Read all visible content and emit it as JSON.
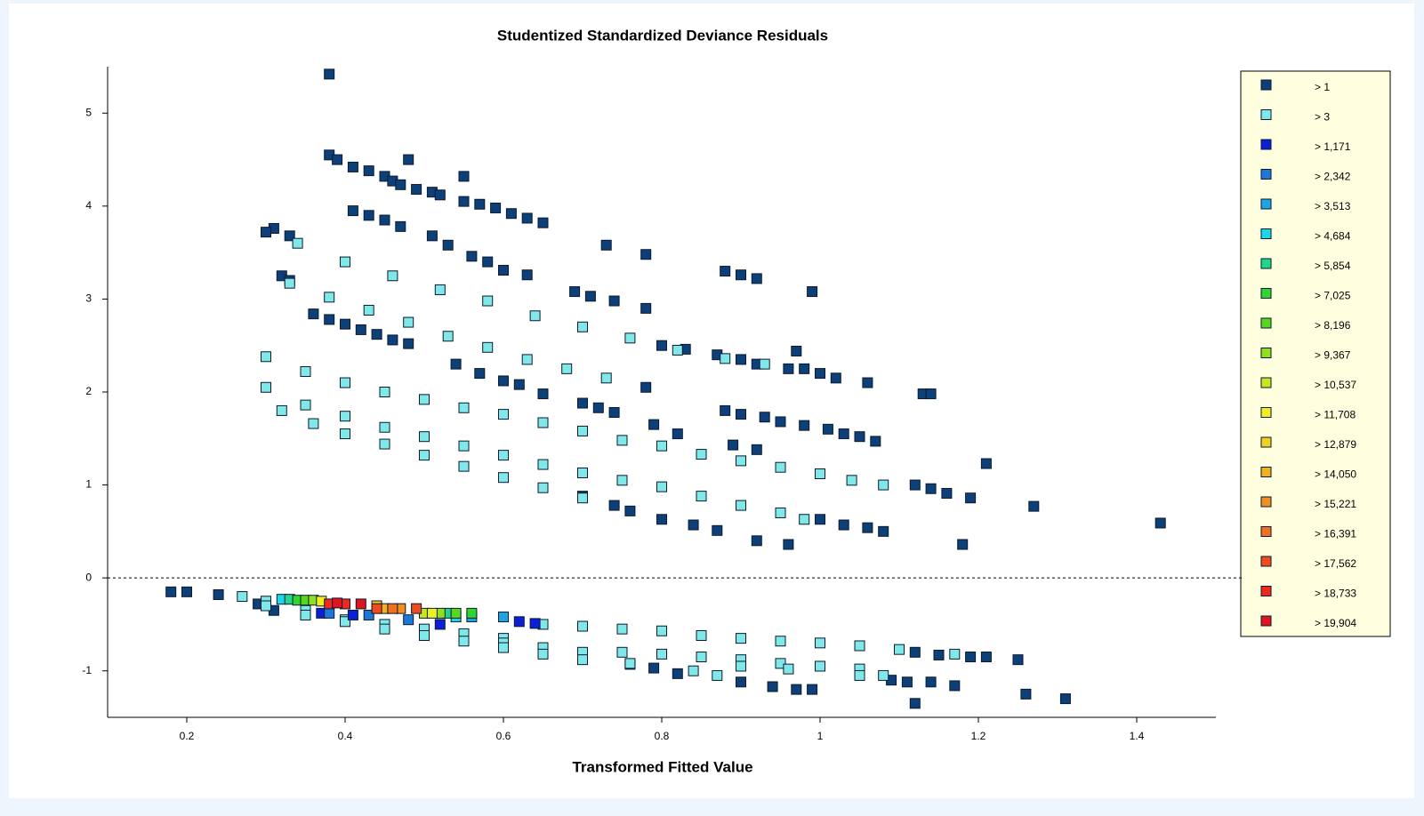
{
  "chart_data": {
    "type": "scatter",
    "title": "Studentized Standardized Deviance Residuals",
    "x_label": "Transformed Fitted Value",
    "xlim": [
      0.1,
      1.5
    ],
    "ylim": [
      -1.5,
      5.5
    ],
    "xticks": [
      0.2,
      0.4,
      0.6,
      0.8,
      1.0,
      1.2,
      1.4
    ],
    "yticks": [
      -1,
      0,
      1,
      2,
      3,
      4,
      5
    ],
    "reference_line": 0,
    "grid": false,
    "legend": "right",
    "series": [
      {
        "name": "> 1",
        "color": "#0d3f78",
        "x": [
          0.38,
          0.38,
          0.39,
          0.41,
          0.43,
          0.45,
          0.46,
          0.48,
          0.47,
          0.49,
          0.51,
          0.52,
          0.55,
          0.55,
          0.57,
          0.59,
          0.61,
          0.63,
          0.65,
          0.41,
          0.43,
          0.45,
          0.47,
          0.51,
          0.53,
          0.56,
          0.58,
          0.6,
          0.63,
          0.73,
          0.78,
          0.69,
          0.71,
          0.74,
          0.78,
          0.88,
          0.9,
          0.92,
          0.99,
          0.31,
          0.33,
          0.3,
          0.32,
          0.33,
          0.36,
          0.38,
          0.4,
          0.42,
          0.44,
          0.46,
          0.48,
          0.54,
          0.57,
          0.6,
          0.62,
          0.65,
          0.7,
          0.72,
          0.74,
          0.78,
          0.8,
          0.83,
          0.87,
          0.9,
          0.92,
          0.97,
          0.96,
          0.98,
          1.0,
          1.02,
          1.06,
          1.13,
          1.14,
          0.79,
          0.82,
          0.88,
          0.9,
          0.93,
          0.95,
          0.98,
          1.01,
          1.03,
          1.05,
          1.07,
          1.12,
          1.14,
          1.16,
          1.19,
          1.21,
          1.27,
          1.43,
          0.7,
          0.74,
          0.76,
          0.8,
          0.84,
          0.87,
          0.92,
          0.96,
          1.0,
          1.03,
          1.06,
          1.08,
          1.18,
          0.89,
          0.92,
          0.18,
          0.2,
          0.24,
          1.12,
          1.15,
          1.19,
          1.21,
          1.25,
          1.26,
          1.31,
          1.12,
          1.14,
          1.17,
          0.94,
          0.97,
          0.99,
          0.9,
          0.82,
          0.79,
          0.76,
          1.09,
          1.11,
          0.29,
          0.31,
          0.35
        ],
        "y": [
          5.42,
          4.55,
          4.5,
          4.42,
          4.38,
          4.32,
          4.27,
          4.5,
          4.23,
          4.18,
          4.15,
          4.12,
          4.32,
          4.05,
          4.02,
          3.98,
          3.92,
          3.87,
          3.82,
          3.95,
          3.9,
          3.85,
          3.78,
          3.68,
          3.58,
          3.46,
          3.4,
          3.31,
          3.26,
          3.58,
          3.48,
          3.08,
          3.03,
          2.98,
          2.9,
          3.3,
          3.26,
          3.22,
          3.08,
          3.76,
          3.68,
          3.72,
          3.25,
          3.2,
          2.84,
          2.78,
          2.73,
          2.67,
          2.62,
          2.56,
          2.52,
          2.3,
          2.2,
          2.12,
          2.08,
          1.98,
          1.88,
          1.83,
          1.78,
          2.05,
          2.5,
          2.46,
          2.4,
          2.35,
          2.3,
          2.44,
          2.25,
          2.25,
          2.2,
          2.15,
          2.1,
          1.98,
          1.98,
          1.65,
          1.55,
          1.8,
          1.76,
          1.73,
          1.68,
          1.64,
          1.6,
          1.55,
          1.52,
          1.47,
          1.0,
          0.96,
          0.91,
          0.86,
          1.23,
          0.77,
          0.59,
          0.88,
          0.78,
          0.72,
          0.63,
          0.57,
          0.51,
          0.4,
          0.36,
          0.63,
          0.57,
          0.54,
          0.5,
          0.36,
          1.43,
          1.38,
          -0.15,
          -0.15,
          -0.18,
          -0.8,
          -0.83,
          -0.85,
          -0.85,
          -0.88,
          -1.25,
          -1.3,
          -1.35,
          -1.12,
          -1.16,
          -1.17,
          -1.2,
          -1.2,
          -1.12,
          -1.03,
          -0.97,
          -0.93,
          -1.1,
          -1.12,
          -0.28,
          -0.35,
          -0.3
        ]
      },
      {
        "name": "> 3",
        "color": "#80e8e8",
        "x": [
          0.34,
          0.4,
          0.46,
          0.52,
          0.58,
          0.64,
          0.7,
          0.76,
          0.82,
          0.88,
          0.93,
          0.33,
          0.38,
          0.43,
          0.48,
          0.53,
          0.58,
          0.63,
          0.68,
          0.73,
          0.3,
          0.35,
          0.4,
          0.45,
          0.5,
          0.55,
          0.6,
          0.65,
          0.7,
          0.75,
          0.8,
          0.85,
          0.9,
          0.95,
          1.0,
          1.04,
          1.08,
          0.3,
          0.35,
          0.4,
          0.45,
          0.5,
          0.55,
          0.6,
          0.65,
          0.7,
          0.75,
          0.8,
          0.85,
          0.9,
          0.95,
          0.98,
          0.32,
          0.36,
          0.4,
          0.45,
          0.5,
          0.55,
          0.6,
          0.65,
          0.7,
          0.27,
          0.3,
          0.35,
          0.4,
          0.45,
          0.5,
          0.55,
          0.6,
          0.65,
          0.7,
          0.75,
          0.8,
          0.85,
          0.9,
          0.95,
          1.0,
          1.05,
          1.1,
          1.17,
          0.3,
          0.35,
          0.4,
          0.45,
          0.5,
          0.55,
          0.6,
          0.65,
          0.7,
          0.75,
          0.8,
          0.85,
          0.9,
          0.95,
          1.0,
          1.05,
          1.08,
          0.6,
          0.65,
          0.7,
          0.76,
          0.84,
          0.87,
          0.9,
          0.96,
          1.05
        ],
        "y": [
          3.6,
          3.4,
          3.25,
          3.1,
          2.98,
          2.82,
          2.7,
          2.58,
          2.45,
          2.36,
          2.3,
          3.17,
          3.02,
          2.88,
          2.75,
          2.6,
          2.48,
          2.35,
          2.25,
          2.15,
          2.38,
          2.22,
          2.1,
          2.0,
          1.92,
          1.83,
          1.76,
          1.67,
          1.58,
          1.48,
          1.42,
          1.33,
          1.26,
          1.19,
          1.12,
          1.05,
          1.0,
          2.05,
          1.86,
          1.74,
          1.62,
          1.52,
          1.42,
          1.32,
          1.22,
          1.13,
          1.05,
          0.98,
          0.88,
          0.78,
          0.7,
          0.63,
          1.8,
          1.66,
          1.55,
          1.44,
          1.32,
          1.2,
          1.08,
          0.97,
          0.86,
          -0.2,
          -0.25,
          -0.35,
          -0.45,
          -0.5,
          -0.55,
          -0.6,
          -0.65,
          -0.5,
          -0.52,
          -0.55,
          -0.57,
          -0.62,
          -0.65,
          -0.68,
          -0.7,
          -0.73,
          -0.77,
          -0.82,
          -0.3,
          -0.4,
          -0.47,
          -0.55,
          -0.62,
          -0.68,
          -0.7,
          -0.75,
          -0.8,
          -0.8,
          -0.82,
          -0.85,
          -0.88,
          -0.92,
          -0.95,
          -0.98,
          -1.05,
          -0.75,
          -0.82,
          -0.88,
          -0.92,
          -1.0,
          -1.05,
          -0.95,
          -0.98,
          -1.05
        ]
      },
      {
        "name": "> 1,171",
        "color": "#0a1fd6",
        "x": [
          0.37,
          0.41,
          0.52,
          0.62,
          0.64
        ],
        "y": [
          -0.38,
          -0.4,
          -0.5,
          -0.47,
          -0.49
        ]
      },
      {
        "name": "> 2,342",
        "color": "#1e78d6",
        "x": [
          0.38,
          0.43,
          0.48
        ],
        "y": [
          -0.38,
          -0.4,
          -0.45
        ]
      },
      {
        "name": "> 3,513",
        "color": "#1ea4e0",
        "x": [
          0.56,
          0.6
        ],
        "y": [
          -0.42,
          -0.42
        ]
      },
      {
        "name": "> 4,684",
        "color": "#1ed6e6",
        "x": [
          0.54,
          0.32
        ],
        "y": [
          -0.42,
          -0.23
        ]
      },
      {
        "name": "> 5,854",
        "color": "#20d68a",
        "x": [
          0.33,
          0.53
        ],
        "y": [
          -0.23,
          -0.38
        ]
      },
      {
        "name": "> 7,025",
        "color": "#30d630",
        "x": [
          0.34,
          0.56
        ],
        "y": [
          -0.24,
          -0.38
        ]
      },
      {
        "name": "> 8,196",
        "color": "#58d620",
        "x": [
          0.35,
          0.54
        ],
        "y": [
          -0.24,
          -0.38
        ]
      },
      {
        "name": "> 9,367",
        "color": "#90e020",
        "x": [
          0.36,
          0.52
        ],
        "y": [
          -0.24,
          -0.38
        ]
      },
      {
        "name": "> 10,537",
        "color": "#c8e620",
        "x": [
          0.5
        ],
        "y": [
          -0.38
        ]
      },
      {
        "name": "> 11,708",
        "color": "#f0f020",
        "x": [
          0.37,
          0.51
        ],
        "y": [
          -0.25,
          -0.38
        ]
      },
      {
        "name": "> 12,879",
        "color": "#f0d020",
        "x": [
          0.44
        ],
        "y": [
          -0.3
        ]
      },
      {
        "name": "> 14,050",
        "color": "#f0b020",
        "x": [
          0.45
        ],
        "y": [
          -0.33
        ]
      },
      {
        "name": "> 15,221",
        "color": "#f09020",
        "x": [
          0.47
        ],
        "y": [
          -0.33
        ]
      },
      {
        "name": "> 16,391",
        "color": "#f07020",
        "x": [
          0.46
        ],
        "y": [
          -0.33
        ]
      },
      {
        "name": "> 17,562",
        "color": "#f04a1e",
        "x": [
          0.44,
          0.49
        ],
        "y": [
          -0.33,
          -0.33
        ]
      },
      {
        "name": "> 18,733",
        "color": "#f0281e",
        "x": [
          0.38,
          0.4
        ],
        "y": [
          -0.28,
          -0.28
        ]
      },
      {
        "name": "> 19,904",
        "color": "#e0141e",
        "x": [
          0.39,
          0.42
        ],
        "y": [
          -0.27,
          -0.28
        ]
      }
    ]
  }
}
